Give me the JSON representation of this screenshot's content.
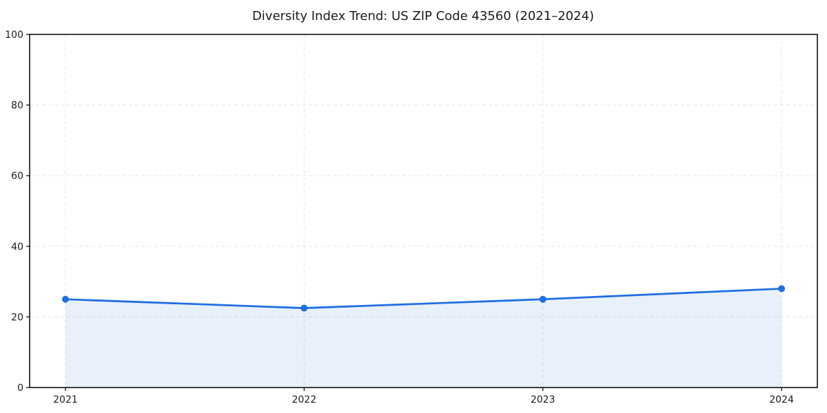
{
  "chart_data": {
    "type": "area",
    "title": "Diversity Index Trend: US ZIP Code 43560 (2021–2024)",
    "xlabel": "",
    "ylabel": "",
    "x": [
      2021,
      2022,
      2023,
      2024
    ],
    "series": [
      {
        "name": "Diversity Index",
        "values": [
          25,
          22.5,
          25,
          28
        ]
      }
    ],
    "xticks": [
      "2021",
      "2022",
      "2023",
      "2024"
    ],
    "yticks": [
      0,
      20,
      40,
      60,
      80,
      100
    ],
    "ylim": [
      0,
      100
    ],
    "x_margin": 0.05,
    "grid": true,
    "grid_style": "dashed",
    "legend": null,
    "colors": {
      "line": "#1f6fe0",
      "marker": "#1f6fe0",
      "fill": "#1f6fe0",
      "fill_opacity": 0.1,
      "grid": "#e7e7e7",
      "spine": "#000000",
      "text": "#1a1a1a",
      "background": "#ffffff"
    }
  }
}
